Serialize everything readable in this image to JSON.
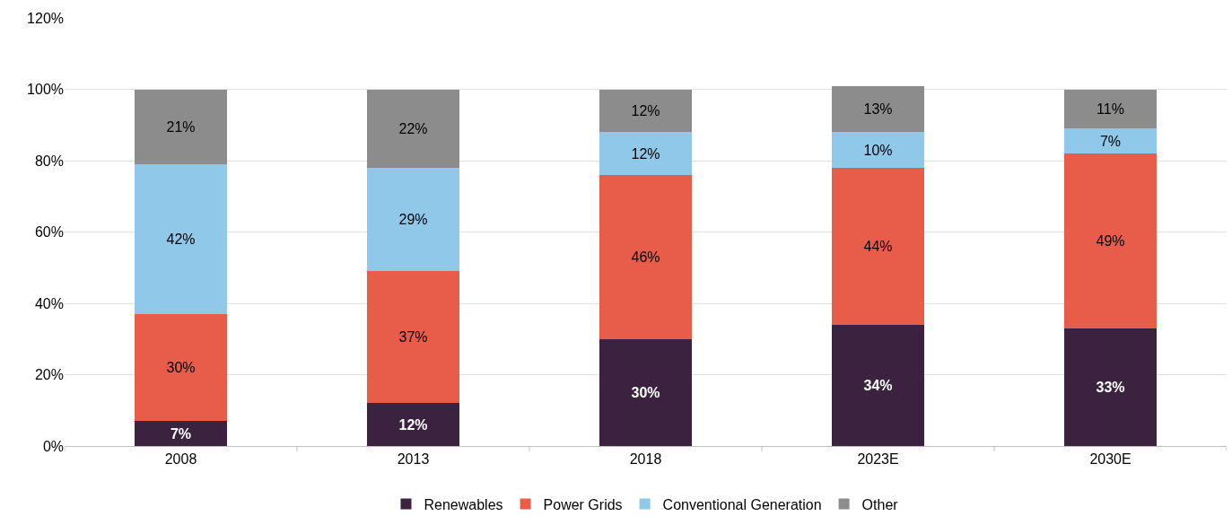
{
  "chart_data": {
    "type": "bar",
    "stacked": true,
    "categories": [
      "2008",
      "2013",
      "2018",
      "2023E",
      "2030E"
    ],
    "series": [
      {
        "name": "Renewables",
        "color": "#3b233f",
        "values": [
          7,
          12,
          30,
          34,
          33
        ],
        "value_labels": [
          "7%",
          "12%",
          "30%",
          "34%",
          "33%"
        ]
      },
      {
        "name": "Power Grids",
        "color": "#e85c4a",
        "values": [
          30,
          37,
          46,
          44,
          49
        ],
        "value_labels": [
          "30%",
          "37%",
          "46%",
          "44%",
          "49%"
        ]
      },
      {
        "name": "Conventional Generation",
        "color": "#8fc8e8",
        "values": [
          42,
          29,
          12,
          10,
          7
        ],
        "value_labels": [
          "42%",
          "29%",
          "12%",
          "10%",
          "7%"
        ]
      },
      {
        "name": "Other",
        "color": "#8c8c8c",
        "values": [
          21,
          22,
          12,
          13,
          11
        ],
        "value_labels": [
          "21%",
          "22%",
          "12%",
          "13%",
          "11%"
        ]
      }
    ],
    "ylim": [
      0,
      120
    ],
    "yticks": [
      {
        "value": 0,
        "label": "0%"
      },
      {
        "value": 20,
        "label": "20%"
      },
      {
        "value": 40,
        "label": "40%"
      },
      {
        "value": 60,
        "label": "60%"
      },
      {
        "value": 80,
        "label": "80%"
      },
      {
        "value": 100,
        "label": "100%"
      },
      {
        "value": 120,
        "label": "120%"
      }
    ],
    "grid": "y",
    "legend": "bottom"
  }
}
